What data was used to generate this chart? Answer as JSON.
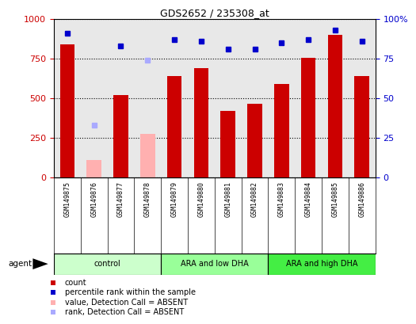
{
  "title": "GDS2652 / 235308_at",
  "samples": [
    "GSM149875",
    "GSM149876",
    "GSM149877",
    "GSM149878",
    "GSM149879",
    "GSM149880",
    "GSM149881",
    "GSM149882",
    "GSM149883",
    "GSM149884",
    "GSM149885",
    "GSM149886"
  ],
  "bar_values": [
    840,
    null,
    520,
    null,
    640,
    690,
    420,
    465,
    590,
    755,
    900,
    640
  ],
  "bar_absent_values": [
    null,
    110,
    null,
    275,
    null,
    null,
    null,
    null,
    null,
    null,
    null,
    null
  ],
  "rank_values": [
    91,
    null,
    83,
    null,
    87,
    86,
    81,
    81,
    85,
    87,
    93,
    86
  ],
  "rank_absent_values": [
    null,
    33,
    null,
    74,
    null,
    null,
    null,
    null,
    null,
    null,
    null,
    null
  ],
  "groups": [
    {
      "label": "control",
      "start": 0,
      "end": 3,
      "color": "#ccffcc"
    },
    {
      "label": "ARA and low DHA",
      "start": 4,
      "end": 7,
      "color": "#99ff99"
    },
    {
      "label": "ARA and high DHA",
      "start": 8,
      "end": 11,
      "color": "#44ee44"
    }
  ],
  "bar_color": "#cc0000",
  "bar_absent_color": "#ffb0b0",
  "rank_color": "#0000cc",
  "rank_absent_color": "#aaaaff",
  "ylim_left": [
    0,
    1000
  ],
  "ylim_right": [
    0,
    100
  ],
  "yticks_left": [
    0,
    250,
    500,
    750,
    1000
  ],
  "yticks_right": [
    0,
    25,
    50,
    75,
    100
  ],
  "background_color": "#ffffff",
  "plot_bg_color": "#e8e8e8",
  "sample_bg_color": "#d0d0d0",
  "legend_items": [
    {
      "label": "count",
      "color": "#cc0000"
    },
    {
      "label": "percentile rank within the sample",
      "color": "#0000cc"
    },
    {
      "label": "value, Detection Call = ABSENT",
      "color": "#ffb0b0"
    },
    {
      "label": "rank, Detection Call = ABSENT",
      "color": "#aaaaff"
    }
  ]
}
